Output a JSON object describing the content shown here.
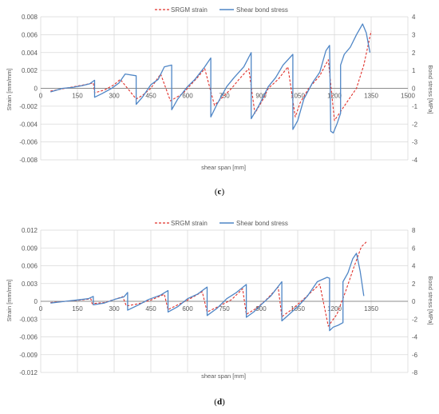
{
  "colors": {
    "strain": "#e0312b",
    "stress": "#4f86c6",
    "grid": "#d9d9d9",
    "axis": "#8c8c8c",
    "text": "#595959"
  },
  "chart_data": [
    {
      "type": "line",
      "panel_label": "c",
      "xlabel": "shear span [mm]",
      "ylabel": "Strain [mm/mm]",
      "y2label": "Bond stress [MPa]",
      "xlim": [
        0,
        1500
      ],
      "ylim": [
        -0.008,
        0.008
      ],
      "y2lim": [
        -4,
        4
      ],
      "xticks": [
        0,
        150,
        300,
        450,
        600,
        750,
        900,
        1050,
        1200,
        1350,
        1500
      ],
      "yticks": [
        0.008,
        0.006,
        0.004,
        0.002,
        0,
        -0.002,
        -0.004,
        -0.006,
        -0.008
      ],
      "yticklabels": [
        "0.008",
        "0.006",
        "0.004",
        "0.002",
        "0",
        "-0.002",
        "-0.004",
        "-0.006",
        "-0.008"
      ],
      "y2ticks": [
        4,
        3,
        2,
        1,
        0,
        -1,
        -2,
        -3,
        -4
      ],
      "y2ticklabels": [
        "4",
        "3",
        "2",
        "1",
        "0",
        "-1",
        "-2",
        "-3",
        "-4"
      ],
      "grid": true,
      "legend_position": "top-center",
      "series": [
        {
          "name": "SRGM strain",
          "axis": "left",
          "style": "dashed",
          "x": [
            40,
            100,
            160,
            215,
            220,
            260,
            300,
            325,
            390,
            415,
            450,
            470,
            490,
            530,
            580,
            600,
            640,
            670,
            710,
            750,
            780,
            810,
            850,
            875,
            905,
            930,
            970,
            1010,
            1040,
            1060,
            1095,
            1140,
            1175,
            1200,
            1245,
            1290,
            1320,
            1350
          ],
          "y": [
            -0.0003,
            0.0,
            0.0003,
            0.0006,
            -0.0005,
            -0.0002,
            0.0004,
            0.001,
            -0.0012,
            -0.0008,
            0.0,
            0.0008,
            0.0016,
            -0.0014,
            -0.0006,
            0.0,
            0.0012,
            0.0022,
            -0.0019,
            -0.0008,
            0.0,
            0.001,
            0.0022,
            -0.0028,
            -0.0014,
            0.0,
            0.001,
            0.0024,
            -0.0032,
            -0.0016,
            0.0,
            0.0014,
            0.0032,
            -0.0036,
            -0.0018,
            0.0,
            0.0026,
            0.0064
          ]
        },
        {
          "name": "Shear bond stress",
          "axis": "right",
          "style": "solid",
          "x": [
            40,
            90,
            130,
            170,
            200,
            220,
            220,
            250,
            290,
            320,
            345,
            390,
            390,
            415,
            450,
            480,
            505,
            535,
            535,
            560,
            600,
            630,
            670,
            695,
            695,
            720,
            760,
            790,
            830,
            860,
            860,
            890,
            930,
            960,
            990,
            1030,
            1030,
            1050,
            1075,
            1110,
            1140,
            1165,
            1180,
            1185,
            1195,
            1210,
            1225,
            1225,
            1240,
            1265,
            1290,
            1315,
            1330,
            1345
          ],
          "y": [
            -0.2,
            0.0,
            0.05,
            0.15,
            0.25,
            0.45,
            -0.5,
            -0.3,
            0.0,
            0.3,
            0.8,
            0.7,
            -0.9,
            -0.5,
            0.2,
            0.5,
            1.2,
            1.3,
            -1.2,
            -0.6,
            0.1,
            0.5,
            1.2,
            1.7,
            -1.6,
            -0.9,
            0.1,
            0.6,
            1.2,
            2.0,
            -1.7,
            -1.0,
            0.1,
            0.6,
            1.3,
            1.9,
            -2.3,
            -1.8,
            -0.6,
            0.3,
            0.9,
            2.1,
            2.4,
            -2.4,
            -2.5,
            -2.0,
            -1.4,
            1.3,
            1.9,
            2.3,
            3.0,
            3.6,
            3.1,
            2.0
          ]
        }
      ]
    },
    {
      "type": "line",
      "panel_label": "d",
      "xlabel": "shear span [mm]",
      "ylabel": "Strain [mm/mm]",
      "y2label": "Bond stress [MPa]",
      "xlim": [
        0,
        1500
      ],
      "ylim": [
        -0.012,
        0.012
      ],
      "y2lim": [
        -8,
        8
      ],
      "xticks": [
        0,
        150,
        300,
        450,
        600,
        750,
        900,
        1050,
        1200,
        1350,
        1500
      ],
      "xticklabels": [
        "0",
        "150",
        "300",
        "450",
        "600",
        "750",
        "900",
        "1050",
        "1200",
        "1350",
        ""
      ],
      "yticks": [
        0.012,
        0.009,
        0.006,
        0.003,
        0,
        -0.003,
        -0.006,
        -0.009,
        -0.012
      ],
      "yticklabels": [
        "0.012",
        "0.009",
        "0.006",
        "0.003",
        "0",
        "-0.003",
        "-0.006",
        "-0.009",
        "-0.012"
      ],
      "y2ticks": [
        8,
        6,
        4,
        2,
        0,
        -2,
        -4,
        -6,
        -8
      ],
      "y2ticklabels": [
        "8",
        "6",
        "4",
        "2",
        "0",
        "-2",
        "-4",
        "-6",
        "-8"
      ],
      "grid": true,
      "legend_position": "top-center",
      "series": [
        {
          "name": "SRGM strain",
          "axis": "left",
          "style": "dashed",
          "x": [
            40,
            100,
            160,
            205,
            210,
            260,
            300,
            335,
            350,
            400,
            450,
            505,
            520,
            560,
            600,
            660,
            680,
            730,
            780,
            825,
            840,
            880,
            920,
            970,
            985,
            1025,
            1070,
            1140,
            1175,
            1210,
            1245,
            1280,
            1310,
            1330
          ],
          "y": [
            -0.0002,
            0.0,
            0.0002,
            0.0004,
            -0.0004,
            -0.0002,
            0.0003,
            0.0008,
            -0.0008,
            -0.0004,
            0.0002,
            0.0012,
            -0.0014,
            -0.0006,
            0.0002,
            0.0016,
            -0.0018,
            -0.0008,
            0.0003,
            0.0021,
            -0.0022,
            -0.0012,
            0.0002,
            0.0024,
            -0.0026,
            -0.0014,
            0.0002,
            0.0029,
            -0.0042,
            -0.0022,
            0.0016,
            0.0058,
            0.0092,
            0.01
          ]
        },
        {
          "name": "Shear bond stress",
          "axis": "right",
          "style": "solid",
          "x": [
            40,
            100,
            150,
            195,
            215,
            215,
            260,
            300,
            340,
            355,
            355,
            400,
            440,
            490,
            520,
            520,
            560,
            600,
            640,
            680,
            680,
            720,
            760,
            800,
            840,
            840,
            870,
            900,
            940,
            985,
            985,
            1010,
            1050,
            1090,
            1130,
            1170,
            1180,
            1180,
            1195,
            1215,
            1235,
            1235,
            1255,
            1275,
            1290,
            1305,
            1320
          ],
          "y": [
            -0.2,
            0.0,
            0.15,
            0.3,
            0.55,
            -0.4,
            -0.2,
            0.2,
            0.5,
            1.0,
            -1.0,
            -0.4,
            0.2,
            0.7,
            1.2,
            -1.2,
            -0.6,
            0.3,
            0.8,
            1.6,
            -1.6,
            -0.8,
            0.3,
            1.0,
            1.9,
            -1.8,
            -1.2,
            -0.4,
            0.6,
            2.2,
            -2.2,
            -1.6,
            -0.6,
            0.6,
            2.2,
            2.7,
            2.6,
            -3.3,
            -2.9,
            -2.7,
            -2.4,
            2.2,
            3.2,
            4.8,
            5.4,
            3.4,
            0.6
          ]
        }
      ]
    }
  ]
}
